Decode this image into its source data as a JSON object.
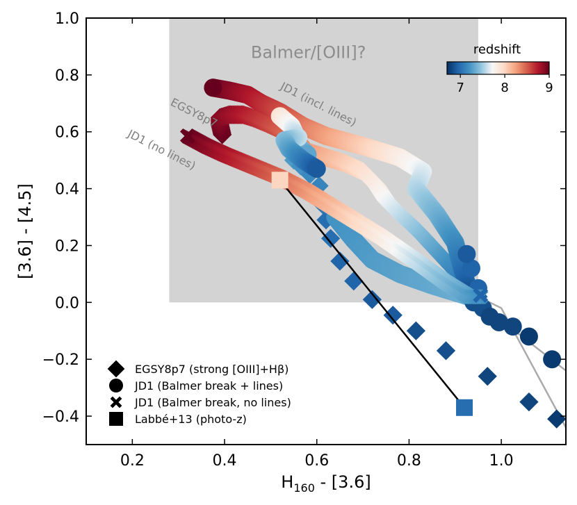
{
  "chart_data": {
    "type": "scatter",
    "title": "",
    "xlabel": "H",
    "xlabel_sub": "160",
    "xlabel_suffix": " - [3.6]",
    "ylabel": "[3.6] - [4.5]",
    "xlim": [
      0.1,
      1.14
    ],
    "ylim": [
      -0.5,
      1.0
    ],
    "xticks": [
      0.2,
      0.4,
      0.6,
      0.8,
      1.0
    ],
    "xtick_labels": [
      "0.2",
      "0.4",
      "0.6",
      "0.8",
      "1.0"
    ],
    "yticks": [
      -0.4,
      -0.2,
      0.0,
      0.2,
      0.4,
      0.6,
      0.8,
      1.0
    ],
    "ytick_labels": [
      "−0.4",
      "−0.2",
      "0.0",
      "0.2",
      "0.4",
      "0.6",
      "0.8",
      "1.0"
    ],
    "grid": false,
    "region": {
      "label": "Balmer/[OIII]?",
      "x": [
        0.28,
        0.95
      ],
      "y": [
        0.0,
        1.0
      ],
      "color": "#d3d3d3"
    },
    "track_labels": [
      {
        "text": "EGSY8p7",
        "x": 0.33,
        "y": 0.655
      },
      {
        "text": "JD1 (incl. lines)",
        "x": 0.6,
        "y": 0.685
      },
      {
        "text": "JD1 (no lines)",
        "x": 0.26,
        "y": 0.525
      }
    ],
    "colorbar": {
      "label": "redshift",
      "range": [
        6.7,
        9.0
      ],
      "ticks": [
        7,
        8,
        9
      ],
      "tick_labels": [
        "7",
        "8",
        "9"
      ],
      "colors": [
        "#053061",
        "#2166ac",
        "#4393c3",
        "#92c5de",
        "#f7f7f7",
        "#fddbc7",
        "#f4a582",
        "#d6604d",
        "#b2182b",
        "#67001f"
      ]
    },
    "series": [
      {
        "name": "EGSY8p7 (strong [OIII]+Hβ)",
        "marker": "diamond",
        "line": true,
        "line_color": "#aaaaaa",
        "dense_tracks": [
          {
            "z_range": [
              9.0,
              6.95
            ],
            "points": [
              [
                0.395,
                0.59
              ],
              [
                0.39,
                0.625
              ],
              [
                0.39,
                0.65
              ],
              [
                0.41,
                0.66
              ],
              [
                0.44,
                0.66
              ],
              [
                0.46,
                0.65
              ],
              [
                0.49,
                0.63
              ],
              [
                0.53,
                0.6
              ],
              [
                0.555,
                0.58
              ],
              [
                0.565,
                0.56
              ],
              [
                0.58,
                0.53
              ],
              [
                0.62,
                0.51
              ],
              [
                0.66,
                0.49
              ],
              [
                0.7,
                0.46
              ],
              [
                0.73,
                0.41
              ],
              [
                0.75,
                0.36
              ],
              [
                0.78,
                0.31
              ],
              [
                0.82,
                0.25
              ],
              [
                0.86,
                0.18
              ],
              [
                0.9,
                0.11
              ],
              [
                0.93,
                0.06
              ],
              [
                0.95,
                0.02
              ]
            ]
          }
        ],
        "markers": [
          [
            0.55,
            0.5
          ],
          [
            0.565,
            0.48
          ],
          [
            0.585,
            0.45
          ],
          [
            0.605,
            0.41
          ],
          [
            0.615,
            0.34
          ],
          [
            0.62,
            0.29
          ],
          [
            0.63,
            0.225
          ],
          [
            0.65,
            0.145
          ],
          [
            0.68,
            0.075
          ],
          [
            0.72,
            0.01
          ],
          [
            0.765,
            -0.045
          ],
          [
            0.815,
            -0.1
          ],
          [
            0.88,
            -0.17
          ],
          [
            0.97,
            -0.26
          ],
          [
            1.06,
            -0.35
          ],
          [
            1.12,
            -0.41
          ]
        ],
        "marker_z": [
          7.25,
          7.2,
          7.15,
          7.12,
          7.05,
          7.0,
          7.0,
          6.95,
          6.95,
          6.9,
          6.9,
          6.85,
          6.85,
          6.8,
          6.8,
          6.75
        ],
        "tail_line": [
          [
            0.95,
            0.02
          ],
          [
            1.0,
            -0.02
          ],
          [
            1.14,
            -0.44
          ]
        ]
      },
      {
        "name": "JD1 (Balmer break + lines)",
        "marker": "circle",
        "line": true,
        "line_color": "#aaaaaa",
        "dense_tracks": [
          {
            "z_range": [
              9.0,
              6.8
            ],
            "points": [
              [
                0.375,
                0.755
              ],
              [
                0.41,
                0.745
              ],
              [
                0.45,
                0.73
              ],
              [
                0.48,
                0.7
              ],
              [
                0.52,
                0.67
              ],
              [
                0.57,
                0.62
              ],
              [
                0.62,
                0.585
              ],
              [
                0.7,
                0.55
              ],
              [
                0.78,
                0.51
              ],
              [
                0.83,
                0.46
              ],
              [
                0.815,
                0.4
              ],
              [
                0.86,
                0.31
              ],
              [
                0.9,
                0.21
              ],
              [
                0.915,
                0.12
              ],
              [
                0.93,
                0.04
              ],
              [
                0.95,
                0.0
              ]
            ]
          },
          {
            "z_range": [
              7.9,
              7.3
            ],
            "points": [
              [
                0.52,
                0.655
              ],
              [
                0.545,
                0.62
              ],
              [
                0.555,
                0.585
              ],
              [
                0.555,
                0.555
              ],
              [
                0.58,
                0.52
              ]
            ]
          },
          {
            "z_range": [
              7.6,
              6.9
            ],
            "points": [
              [
                0.56,
                0.58
              ],
              [
                0.53,
                0.57
              ],
              [
                0.54,
                0.54
              ],
              [
                0.57,
                0.5
              ],
              [
                0.6,
                0.47
              ]
            ]
          },
          {
            "z_range": [
              7.2,
              7.35
            ],
            "points": [
              [
                0.64,
                0.3
              ],
              [
                0.68,
                0.22
              ],
              [
                0.72,
                0.15
              ],
              [
                0.78,
                0.1
              ],
              [
                0.85,
                0.06
              ],
              [
                0.93,
                0.02
              ]
            ]
          }
        ],
        "markers": [
          [
            0.375,
            0.755
          ],
          [
            0.95,
            0.05
          ],
          [
            0.935,
            0.12
          ],
          [
            0.925,
            0.17
          ],
          [
            0.94,
            0.0
          ],
          [
            0.96,
            -0.02
          ],
          [
            0.975,
            -0.05
          ],
          [
            0.995,
            -0.07
          ],
          [
            1.025,
            -0.085
          ],
          [
            1.06,
            -0.12
          ],
          [
            1.11,
            -0.2
          ]
        ],
        "marker_z": [
          9.0,
          6.95,
          6.95,
          6.9,
          6.85,
          6.85,
          6.8,
          6.8,
          6.8,
          6.75,
          6.75
        ],
        "tail_line": [
          [
            0.95,
            0.0
          ],
          [
            1.14,
            -0.24
          ]
        ]
      },
      {
        "name": "JD1 (Balmer break, no lines)",
        "marker": "cross",
        "line": false,
        "dense_tracks": [
          {
            "z_range": [
              9.0,
              7.2
            ],
            "points": [
              [
                0.32,
                0.585
              ],
              [
                0.36,
                0.55
              ],
              [
                0.4,
                0.52
              ],
              [
                0.46,
                0.48
              ],
              [
                0.52,
                0.44
              ],
              [
                0.58,
                0.39
              ],
              [
                0.66,
                0.31
              ],
              [
                0.74,
                0.23
              ],
              [
                0.82,
                0.14
              ],
              [
                0.88,
                0.07
              ],
              [
                0.93,
                0.02
              ],
              [
                0.955,
                0.02
              ]
            ]
          }
        ],
        "markers": [
          [
            0.32,
            0.585
          ],
          [
            0.955,
            0.025
          ]
        ],
        "marker_z": [
          9.0,
          6.95
        ]
      },
      {
        "name": "Labbé+13 (photo-z)",
        "marker": "square",
        "line": true,
        "line_color": "#000000",
        "points": [
          [
            0.52,
            0.43
          ],
          [
            0.92,
            -0.37
          ]
        ],
        "z": [
          8.0,
          7.0
        ]
      }
    ]
  }
}
